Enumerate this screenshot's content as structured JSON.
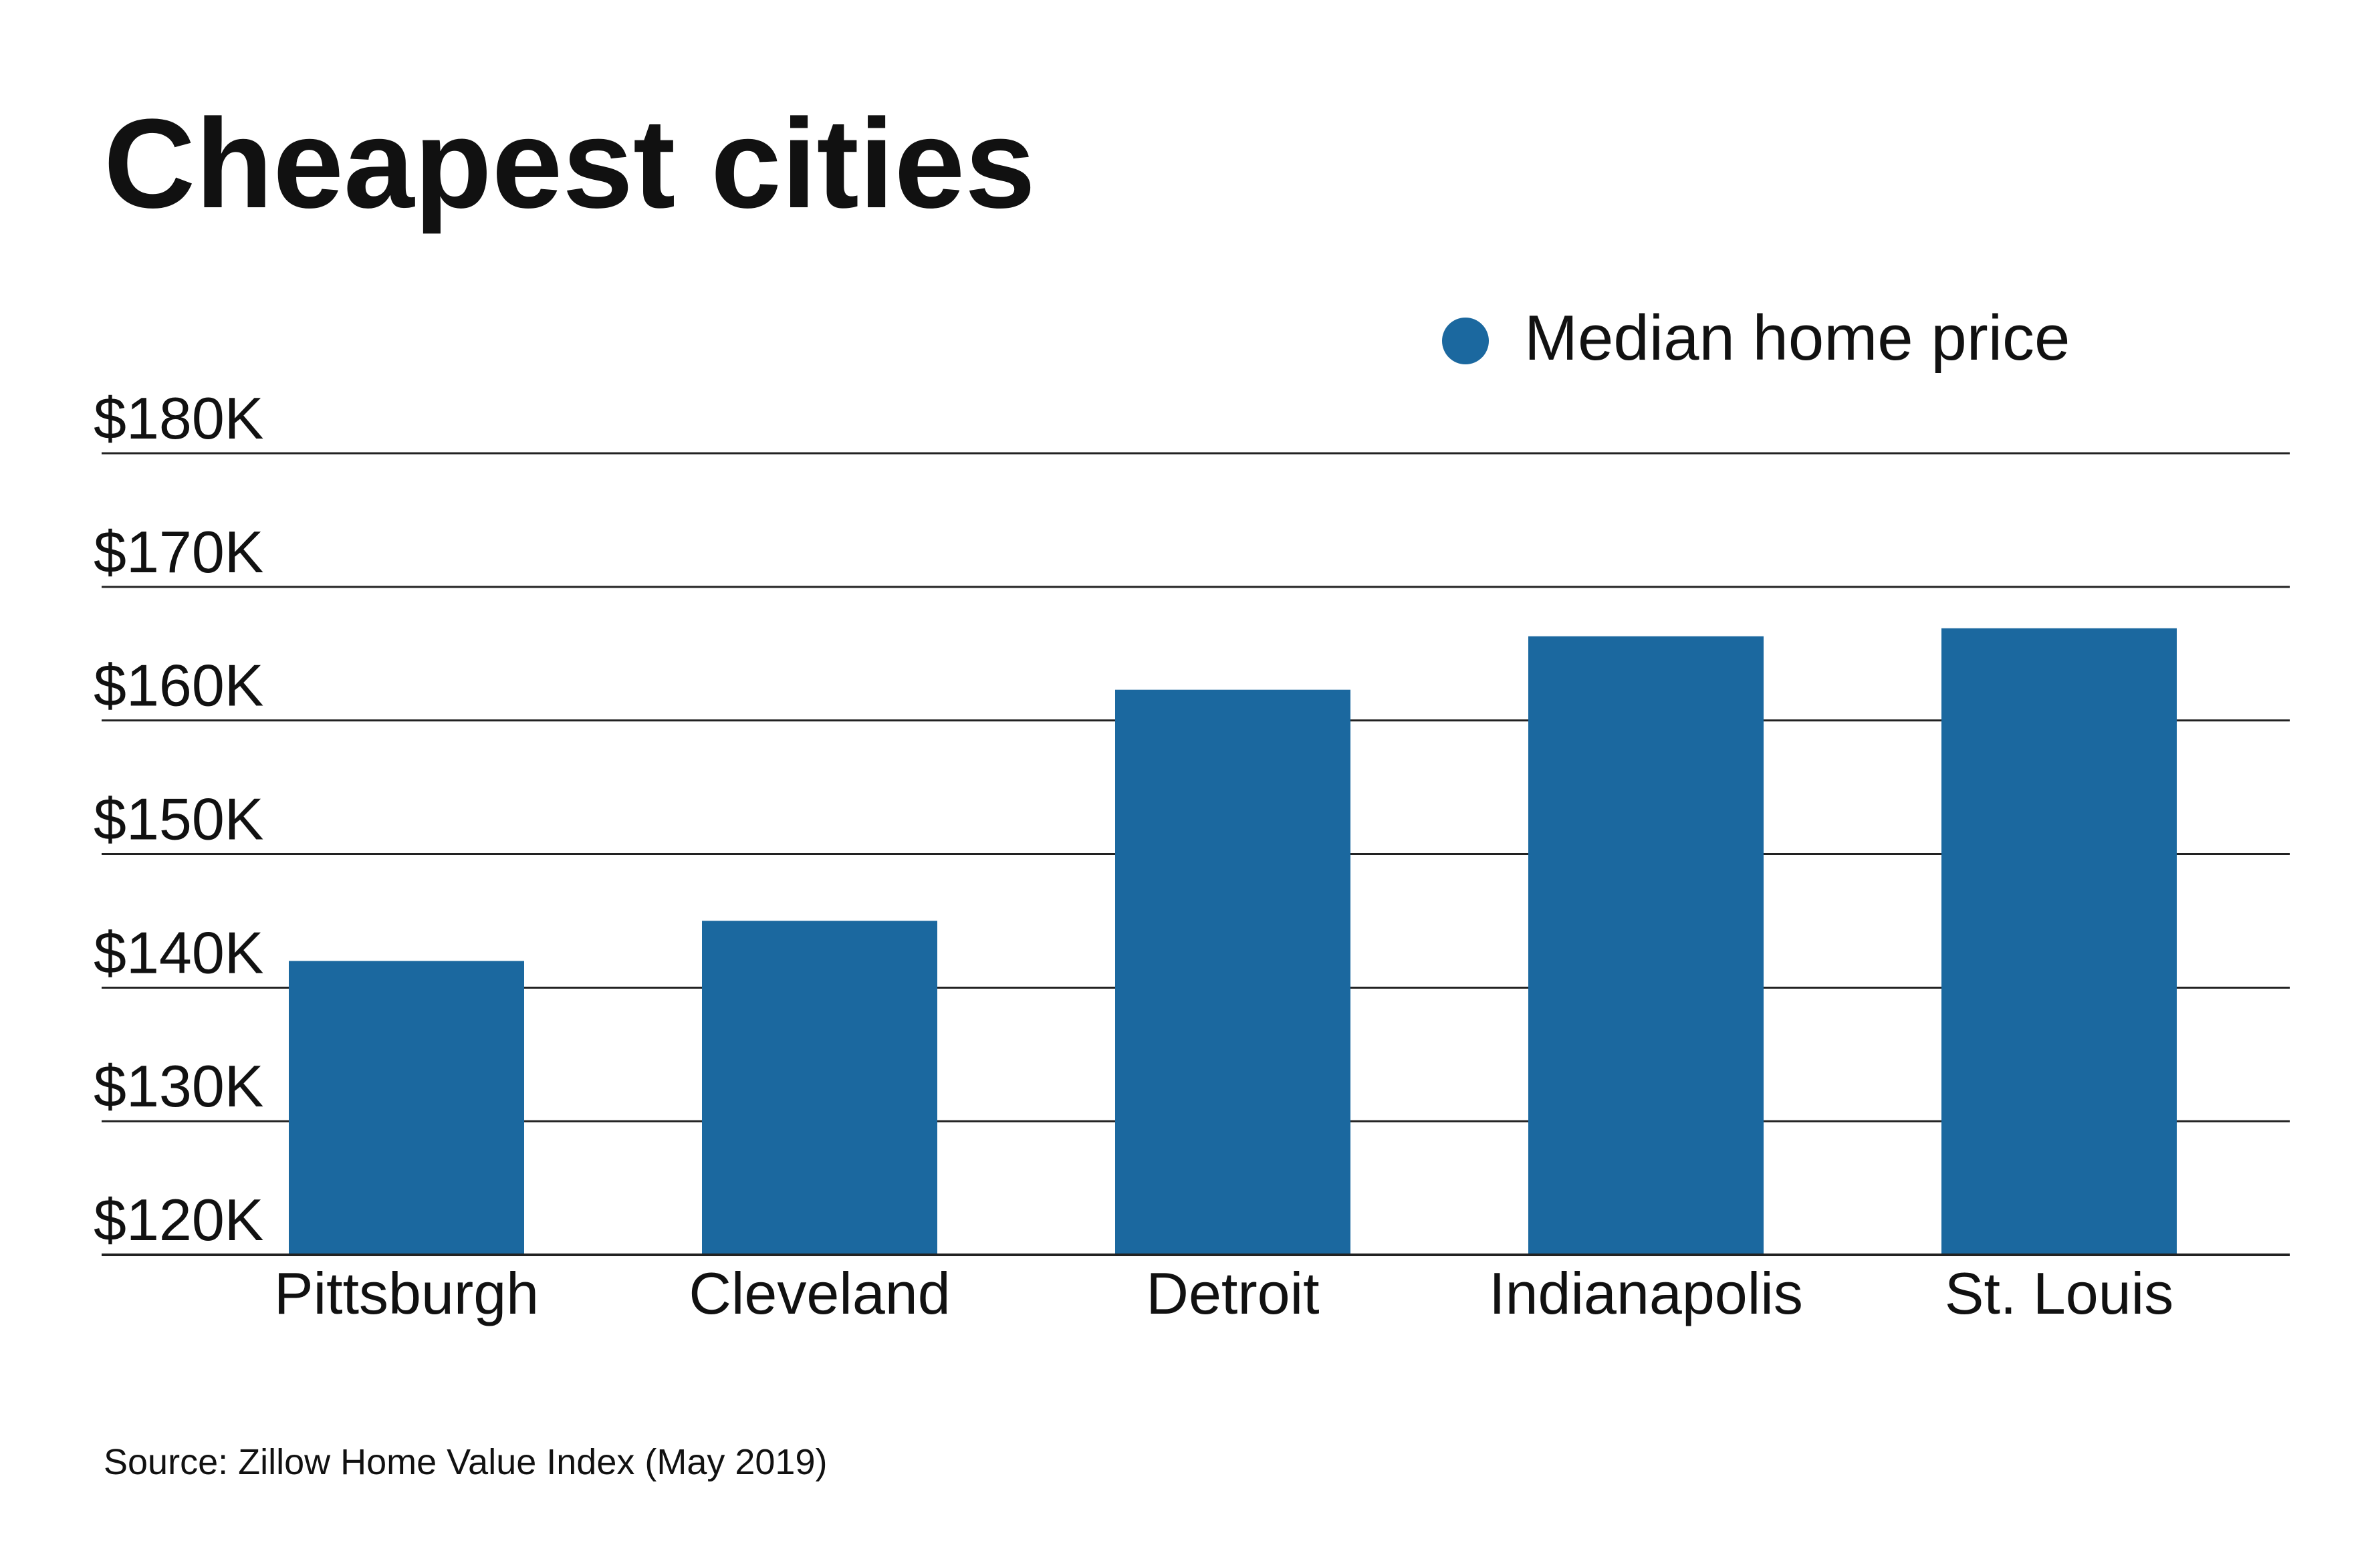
{
  "chart_data": {
    "type": "bar",
    "title": "Cheapest cities",
    "legend": {
      "label": "Median home price",
      "placement": "top-right",
      "color": "#1b689f"
    },
    "categories": [
      "Pittsburgh",
      "Cleveland",
      "Detroit",
      "Indianapolis",
      "St. Louis"
    ],
    "series": [
      {
        "name": "Median home price",
        "values": [
          142000,
          145000,
          162300,
          166300,
          166900
        ]
      }
    ],
    "ylim": [
      120000,
      180000
    ],
    "yticks": [
      120000,
      130000,
      140000,
      150000,
      160000,
      170000,
      180000
    ],
    "ytick_labels": [
      "$120K",
      "$130K",
      "$140K",
      "$150K",
      "$160K",
      "$170K",
      "$180K"
    ],
    "grid": true,
    "xlabel": "",
    "ylabel": "",
    "source": "Source: Zillow Home Value Index (May 2019)",
    "colors": {
      "bar": "#1b689f",
      "grid": "#222222",
      "text": "#111111"
    }
  }
}
